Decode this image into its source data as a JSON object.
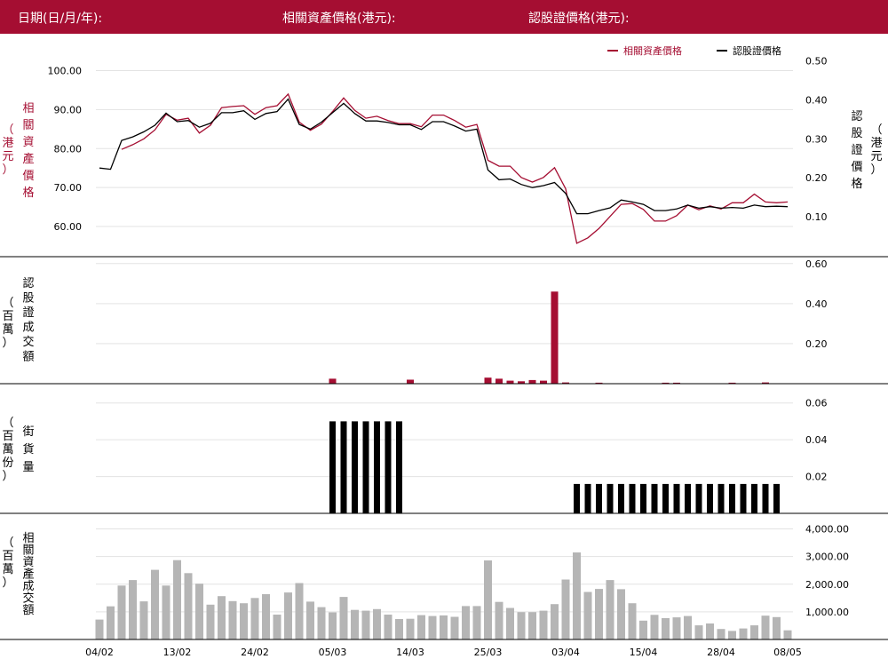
{
  "header": {
    "date_label": "日期(日/月/年):",
    "underlying_price_label": "相關資產價格(港元):",
    "warrant_price_label": "認股證價格(港元):"
  },
  "colors": {
    "header_bg": "#a50e32",
    "underlying": "#a50e32",
    "warrant": "#000000",
    "turnover_bar": "#b5b5b5",
    "grid": "#e3e3e3"
  },
  "chart_data": [
    {
      "type": "line",
      "title": "",
      "legend": {
        "placement": "top-right",
        "entries": [
          "相關資產價格",
          "認股證價格"
        ]
      },
      "left_axis_label": [
        "相",
        "關",
        "資",
        "產",
        "價",
        "格"
      ],
      "left_axis_unit": [
        "（",
        "港",
        "元",
        "）"
      ],
      "right_axis_label": [
        "認",
        "股",
        "證",
        "價",
        "格"
      ],
      "right_axis_unit": [
        "（",
        "港",
        "元",
        "）"
      ],
      "left_ticks": [
        "100.00",
        "90.00",
        "80.00",
        "70.00",
        "60.00"
      ],
      "right_ticks": [
        "0.50",
        "0.40",
        "0.30",
        "0.20",
        "0.10"
      ],
      "ylim_left": [
        55,
        104
      ],
      "ylim_right": [
        0.025,
        0.515
      ],
      "grid": true,
      "series": [
        {
          "name": "相關資產價格",
          "axis": "left",
          "values": [
            null,
            null,
            79.8,
            81.0,
            82.5,
            84.8,
            88.8,
            87.3,
            87.8,
            84.0,
            86.0,
            90.5,
            90.8,
            91.0,
            88.8,
            90.5,
            91.0,
            94.0,
            86.8,
            84.7,
            86.3,
            89.5,
            93.0,
            89.8,
            87.8,
            88.3,
            87.2,
            86.4,
            86.4,
            85.6,
            88.6,
            88.6,
            87.2,
            85.5,
            86.2,
            77.0,
            75.5,
            75.5,
            72.6,
            71.4,
            72.6,
            75.1,
            69.7,
            55.7,
            57.1,
            59.5,
            62.6,
            65.7,
            65.9,
            64.4,
            61.4,
            61.4,
            62.8,
            65.5,
            64.3,
            65.3,
            64.5,
            66.1,
            66.1,
            68.3,
            66.3,
            66.1,
            66.3
          ]
        },
        {
          "name": "認股證價格",
          "axis": "right",
          "values": [
            0.225,
            0.222,
            0.296,
            0.305,
            0.318,
            0.335,
            0.366,
            0.344,
            0.347,
            0.33,
            0.34,
            0.367,
            0.367,
            0.372,
            0.35,
            0.365,
            0.37,
            0.402,
            0.337,
            0.325,
            0.343,
            0.367,
            0.391,
            0.365,
            0.346,
            0.346,
            0.342,
            0.336,
            0.336,
            0.324,
            0.344,
            0.344,
            0.333,
            0.32,
            0.325,
            0.22,
            0.195,
            0.197,
            0.183,
            0.175,
            0.18,
            0.188,
            0.16,
            0.108,
            0.108,
            0.116,
            0.123,
            0.143,
            0.138,
            0.132,
            0.116,
            0.116,
            0.12,
            0.13,
            0.122,
            0.126,
            0.122,
            0.124,
            0.122,
            0.13,
            0.126,
            0.127,
            0.126
          ]
        }
      ]
    },
    {
      "type": "bar",
      "axis_label": [
        "認",
        "股",
        "證",
        "成",
        "交",
        "額"
      ],
      "axis_unit": [
        "（",
        "百",
        "萬",
        "）"
      ],
      "ticks": [
        "0.60",
        "0.40",
        "0.20"
      ],
      "ylim": [
        0,
        0.63
      ],
      "grid": true,
      "values": [
        0,
        0,
        0,
        0,
        0,
        0,
        0,
        0,
        0,
        0,
        0,
        0,
        0,
        0,
        0,
        0,
        0,
        0,
        0,
        0,
        0,
        0.025,
        0,
        0,
        0,
        0,
        0,
        0,
        0.02,
        0,
        0,
        0,
        0,
        0,
        0,
        0.03,
        0.025,
        0.015,
        0.012,
        0.018,
        0.015,
        0.46,
        0.006,
        0,
        0,
        0.005,
        0,
        0,
        0,
        0,
        0,
        0.005,
        0.005,
        0,
        0,
        0,
        0,
        0.005,
        0,
        0,
        0.006,
        0,
        0
      ]
    },
    {
      "type": "bar",
      "axis_label": [
        "街",
        "貨",
        "量"
      ],
      "axis_unit": [
        "（",
        "百",
        "萬",
        "份",
        "）"
      ],
      "ticks": [
        "0.06",
        "0.04",
        "0.02"
      ],
      "ylim": [
        0,
        0.07
      ],
      "grid": true,
      "values": [
        0,
        0,
        0,
        0,
        0,
        0,
        0,
        0,
        0,
        0,
        0,
        0,
        0,
        0,
        0,
        0,
        0,
        0,
        0,
        0,
        0,
        0.05,
        0.05,
        0.05,
        0.05,
        0.05,
        0.05,
        0.05,
        0,
        0,
        0,
        0,
        0,
        0,
        0,
        0,
        0,
        0,
        0,
        0,
        0,
        0,
        0,
        0.016,
        0.016,
        0.016,
        0.016,
        0.016,
        0.016,
        0.016,
        0.016,
        0.016,
        0.016,
        0.016,
        0.016,
        0.016,
        0.016,
        0.016,
        0.016,
        0.016,
        0.016,
        0.016,
        0
      ]
    },
    {
      "type": "bar",
      "axis_label": [
        "相",
        "關",
        "資",
        "產",
        "成",
        "交",
        "額"
      ],
      "axis_unit": [
        "（",
        "百",
        "萬",
        "）"
      ],
      "ticks": [
        "4,000.00",
        "3,000.00",
        "2,000.00",
        "1,000.00"
      ],
      "ylim": [
        0,
        4500
      ],
      "grid": true,
      "values": [
        720,
        1200,
        1950,
        2150,
        1380,
        2520,
        1950,
        2870,
        2400,
        2020,
        1260,
        1570,
        1390,
        1310,
        1500,
        1640,
        900,
        1700,
        2040,
        1370,
        1170,
        980,
        1540,
        1070,
        1040,
        1100,
        900,
        740,
        750,
        880,
        850,
        870,
        820,
        1210,
        1210,
        2860,
        1360,
        1140,
        990,
        990,
        1040,
        1280,
        2170,
        3150,
        1720,
        1830,
        2150,
        1820,
        1310,
        680,
        890,
        770,
        800,
        850,
        510,
        580,
        380,
        310,
        400,
        510,
        860,
        810,
        330
      ]
    }
  ],
  "x_axis": {
    "labels": [
      "04/02",
      "13/02",
      "24/02",
      "05/03",
      "14/03",
      "25/03",
      "03/04",
      "15/04",
      "28/04",
      "08/05"
    ],
    "label_index": [
      0,
      7,
      14,
      21,
      28,
      35,
      42,
      49,
      56,
      62
    ]
  }
}
